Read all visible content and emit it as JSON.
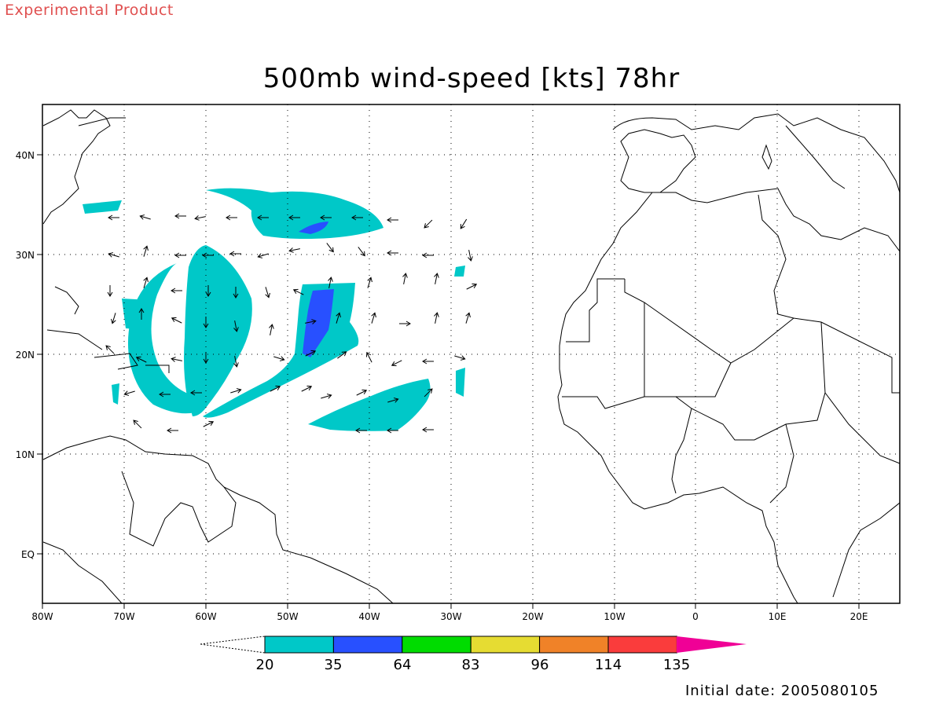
{
  "header": {
    "label": "Experimental Product",
    "title": "500mb wind-speed [kts] 78hr"
  },
  "footer": {
    "initial_date": "Initial date: 2005080105"
  },
  "map": {
    "lon_range": [
      -80,
      25
    ],
    "lat_range": [
      -5,
      45
    ],
    "x_tick_labels": [
      "80W",
      "70W",
      "60W",
      "50W",
      "40W",
      "30W",
      "20W",
      "10W",
      "0",
      "10E",
      "20E"
    ],
    "y_tick_labels": [
      "40N",
      "30N",
      "20N",
      "10N",
      "EQ"
    ],
    "gridlines": "dotted",
    "vectors": "wind arrows"
  },
  "colorbar": {
    "levels": [
      "20",
      "35",
      "64",
      "83",
      "96",
      "114",
      "135"
    ],
    "colors": [
      "#00c8c8",
      "#2850ff",
      "#00dc00",
      "#e6dc32",
      "#f08228",
      "#fa3c3c",
      "#f00096"
    ],
    "min_color": "#ffffff",
    "max_color": "#f00096"
  },
  "shading_colors": {
    "band_20_35": "#00c8c8",
    "band_35_64": "#2850ff"
  }
}
